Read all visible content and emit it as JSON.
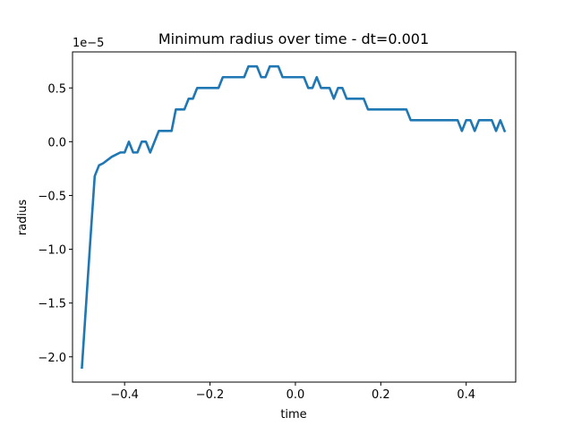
{
  "chart_data": {
    "type": "line",
    "title": "Minimum radius over time - dt=0.001",
    "xlabel": "time",
    "ylabel": "radius",
    "offset_text": "1e−5",
    "xlim": [
      -0.522,
      0.516
    ],
    "ylim": [
      -2.235,
      0.835
    ],
    "xticks": [
      -0.4,
      -0.2,
      0.0,
      0.2,
      0.4
    ],
    "xtick_labels": [
      "−0.4",
      "−0.2",
      "0.0",
      "0.2",
      "0.4"
    ],
    "yticks": [
      -2.0,
      -1.5,
      -1.0,
      -0.5,
      0.0,
      0.5
    ],
    "ytick_labels": [
      "−2.0",
      "−1.5",
      "−1.0",
      "−0.5",
      "0.0",
      "0.5"
    ],
    "grid": false,
    "legend": "none",
    "color": "#1f77b4",
    "series": [
      {
        "x": [
          -0.5,
          -0.48,
          -0.47,
          -0.46,
          -0.45,
          -0.43,
          -0.41,
          -0.4,
          -0.39,
          -0.38,
          -0.37,
          -0.36,
          -0.35,
          -0.34,
          -0.33,
          -0.32,
          -0.31,
          -0.3,
          -0.29,
          -0.28,
          -0.27,
          -0.26,
          -0.25,
          -0.24,
          -0.23,
          -0.22,
          -0.21,
          -0.2,
          -0.19,
          -0.18,
          -0.17,
          -0.16,
          -0.15,
          -0.14,
          -0.13,
          -0.12,
          -0.11,
          -0.1,
          -0.09,
          -0.08,
          -0.07,
          -0.06,
          -0.05,
          -0.04,
          -0.03,
          -0.02,
          -0.01,
          0.0,
          0.01,
          0.02,
          0.03,
          0.04,
          0.05,
          0.06,
          0.07,
          0.08,
          0.09,
          0.1,
          0.11,
          0.12,
          0.13,
          0.14,
          0.15,
          0.16,
          0.17,
          0.18,
          0.19,
          0.2,
          0.21,
          0.22,
          0.23,
          0.24,
          0.25,
          0.26,
          0.27,
          0.28,
          0.29,
          0.3,
          0.31,
          0.32,
          0.33,
          0.34,
          0.35,
          0.36,
          0.37,
          0.38,
          0.39,
          0.4,
          0.41,
          0.42,
          0.43,
          0.44,
          0.45,
          0.46,
          0.47,
          0.48,
          0.49
        ],
        "y": [
          -2.1,
          -0.9,
          -0.32,
          -0.22,
          -0.2,
          -0.14,
          -0.1,
          -0.1,
          0.0,
          -0.1,
          -0.1,
          0.0,
          0.0,
          -0.1,
          0.0,
          0.1,
          0.1,
          0.1,
          0.1,
          0.3,
          0.3,
          0.3,
          0.4,
          0.4,
          0.5,
          0.5,
          0.5,
          0.5,
          0.5,
          0.5,
          0.6,
          0.6,
          0.6,
          0.6,
          0.6,
          0.6,
          0.7,
          0.7,
          0.7,
          0.6,
          0.6,
          0.7,
          0.7,
          0.7,
          0.6,
          0.6,
          0.6,
          0.6,
          0.6,
          0.6,
          0.5,
          0.5,
          0.6,
          0.5,
          0.5,
          0.5,
          0.4,
          0.5,
          0.5,
          0.4,
          0.4,
          0.4,
          0.4,
          0.4,
          0.3,
          0.3,
          0.3,
          0.3,
          0.3,
          0.3,
          0.3,
          0.3,
          0.3,
          0.3,
          0.2,
          0.2,
          0.2,
          0.2,
          0.2,
          0.2,
          0.2,
          0.2,
          0.2,
          0.2,
          0.2,
          0.2,
          0.1,
          0.2,
          0.2,
          0.1,
          0.2,
          0.2,
          0.2,
          0.2,
          0.1,
          0.2,
          0.1
        ]
      }
    ]
  }
}
